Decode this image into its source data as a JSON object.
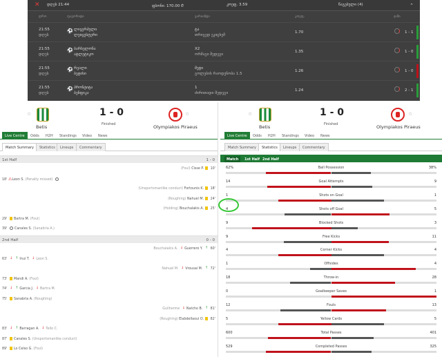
{
  "betslip": {
    "time": "დღეს 21:44",
    "stake_label": "ფსონი: 170.00 ₾",
    "odds_label": "კოეფ. 3.59",
    "status": "წაგებული (4)",
    "columns": [
      "დრო",
      "ფავორიტი",
      "ვარიანტი",
      "კოეფ.",
      "ჯამი"
    ],
    "rows": [
      {
        "time": "21:55",
        "day": "დღეს",
        "teams1": "ლივერპული",
        "teams2": "ლეიცესტერი",
        "pick1": "ტა",
        "pick2": "თრიგედ ეკიცხემ",
        "odd": "1.70",
        "score": "1 - 1",
        "bar": "#2a9d3a"
      },
      {
        "time": "21:55",
        "day": "დღეს",
        "teams1": "ბარსელონა",
        "teams2": "ატლეტიკო",
        "pick1": "X2",
        "pick2": "ორმაგი შედეგი",
        "odd": "1.35",
        "score": "1 - 0",
        "bar": "#2a9d3a"
      },
      {
        "time": "21:55",
        "day": "დღეს",
        "teams1": "რეალი",
        "teams2": "ბეტისი",
        "pick1": "მეტი",
        "pick2": "გოლების რაოდენობა 1.5",
        "odd": "1.26",
        "score": "1 - 0",
        "bar": "#c0121b"
      },
      {
        "time": "21:55",
        "day": "დღეს",
        "teams1": "პრონტიტა",
        "teams2": "ბენფიკა",
        "pick1": "1",
        "pick2": "ძირითადი შედეგი",
        "odd": "1.24",
        "score": "2 - 1",
        "bar": "#2a9d3a"
      }
    ]
  },
  "match": {
    "home": "Betis",
    "away": "Olympiakos Piraeus",
    "score": "1 - 0",
    "status": "Finished"
  },
  "main_tabs": [
    "Live Centre",
    "Odds",
    "H2H",
    "Standings",
    "Video",
    "News"
  ],
  "sub_tabs": [
    "Match Summary",
    "Statistics",
    "Lineups",
    "Commentary"
  ],
  "summary": {
    "half1_label": "1st Half",
    "half1_score": "1 - 0",
    "half2_label": "2nd Half",
    "half2_score": "0 - 0",
    "events_h1": [
      {
        "side": "away",
        "min": "10'",
        "text": "Cisse P.",
        "note": "(Foul)",
        "type": "yellow"
      },
      {
        "side": "home",
        "min": "18'",
        "text": "Leon S.",
        "note": "(Penalty missed)",
        "type": "penalty"
      },
      {
        "side": "away",
        "min": "18'",
        "text": "Fortounis K.",
        "note": "(Unsportsmanlike conduct)",
        "type": "yellow"
      },
      {
        "side": "away",
        "min": "24'",
        "text": "Nahuel M.",
        "note": "(Roughing)",
        "type": "yellow"
      },
      {
        "side": "away",
        "min": "25'",
        "text": "Bouchalakis A.",
        "note": "(Holding)",
        "type": "yellow"
      },
      {
        "side": "home",
        "min": "29'",
        "text": "Bartra M.",
        "note": "(Foul)",
        "type": "yellow"
      },
      {
        "side": "home",
        "min": "39'",
        "text": "Canales S.",
        "note": "(Sanabria A.)",
        "type": "goal"
      }
    ],
    "events_h2": [
      {
        "side": "away",
        "min": "60'",
        "text": "Guerrero Y.",
        "note": "Bouchalakis A.",
        "type": "sub"
      },
      {
        "side": "home",
        "min": "63'",
        "text": "Inui T.",
        "note": "Leon S.",
        "type": "sub"
      },
      {
        "side": "away",
        "min": "72'",
        "text": "Vrousai M.",
        "note": "Nahuel M.",
        "type": "sub"
      },
      {
        "side": "home",
        "min": "73'",
        "text": "Mandi A.",
        "note": "(Foul)",
        "type": "yellow"
      },
      {
        "side": "home",
        "min": "74'",
        "text": "Garcia J.",
        "note": "Bartra M.",
        "type": "sub"
      },
      {
        "side": "home",
        "min": "75'",
        "text": "Sanabria A.",
        "note": "(Roughing)",
        "type": "yellow"
      },
      {
        "side": "away",
        "min": "81'",
        "text": "Natcho B.",
        "note": "Guilherme",
        "type": "sub"
      },
      {
        "side": "away",
        "min": "82'",
        "text": "Elabdellaoui O.",
        "note": "(Roughing)",
        "type": "yellow"
      },
      {
        "side": "home",
        "min": "83'",
        "text": "Barragan A.",
        "note": "Tello C.",
        "type": "sub"
      },
      {
        "side": "home",
        "min": "87'",
        "text": "Canales S.",
        "note": "(Unsportsmanlike conduct)",
        "type": "yellow"
      },
      {
        "side": "home",
        "min": "89'",
        "text": "Lo Celso G.",
        "note": "(Foul)",
        "type": "yellow"
      }
    ]
  },
  "stat_tabs": [
    "Match",
    "1st Half",
    "2nd Half"
  ],
  "stats": [
    {
      "name": "Ball Possession",
      "home": "62%",
      "away": "38%",
      "hv": 62,
      "av": 38
    },
    {
      "name": "Goal Attempts",
      "home": "14",
      "away": "9",
      "hv": 14,
      "av": 9
    },
    {
      "name": "Shots on Goal",
      "home": "1",
      "away": "1",
      "hv": 1,
      "av": 1
    },
    {
      "name": "Shots off Goal",
      "home": "4",
      "away": "5",
      "hv": 4,
      "av": 5
    },
    {
      "name": "Blocked Shots",
      "home": "9",
      "away": "3",
      "hv": 9,
      "av": 3
    },
    {
      "name": "Free Kicks",
      "home": "9",
      "away": "11",
      "hv": 9,
      "av": 11
    },
    {
      "name": "Corner Kicks",
      "home": "4",
      "away": "4",
      "hv": 4,
      "av": 4
    },
    {
      "name": "Offsides",
      "home": "1",
      "away": "4",
      "hv": 1,
      "av": 4
    },
    {
      "name": "Throw-in",
      "home": "18",
      "away": "28",
      "hv": 18,
      "av": 28
    },
    {
      "name": "Goalkeeper Saves",
      "home": "0",
      "away": "1",
      "hv": 0,
      "av": 1
    },
    {
      "name": "Fouls",
      "home": "12",
      "away": "13",
      "hv": 12,
      "av": 13
    },
    {
      "name": "Yellow Cards",
      "home": "5",
      "away": "5",
      "hv": 5,
      "av": 5
    },
    {
      "name": "Total Passes",
      "home": "600",
      "away": "401",
      "hv": 600,
      "av": 401
    },
    {
      "name": "Completed Passes",
      "home": "529",
      "away": "325",
      "hv": 529,
      "av": 325
    }
  ]
}
